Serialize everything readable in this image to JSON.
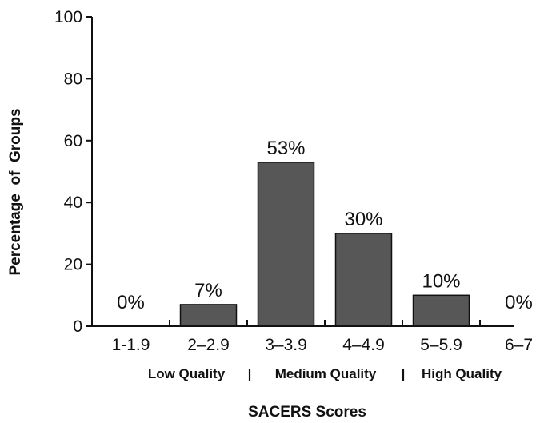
{
  "chart_data": {
    "type": "bar",
    "categories": [
      "1-1.9",
      "2–2.9",
      "3–3.9",
      "4–4.9",
      "5–5.9",
      "6–7"
    ],
    "values": [
      0,
      7,
      53,
      30,
      10,
      0
    ],
    "data_labels": [
      "0%",
      "7%",
      "53%",
      "30%",
      "10%",
      "0%"
    ],
    "ylabel": "Percentage  of  Groups",
    "xlabel": "SACERS Scores",
    "ylim": [
      0,
      100
    ],
    "yticks": [
      "0",
      "20",
      "40",
      "60",
      "80",
      "100"
    ],
    "quality_groups": [
      "Low Quality",
      "Medium Quality",
      "High Quality"
    ],
    "grid": false,
    "legend": "none",
    "bar_color": "#575757"
  }
}
